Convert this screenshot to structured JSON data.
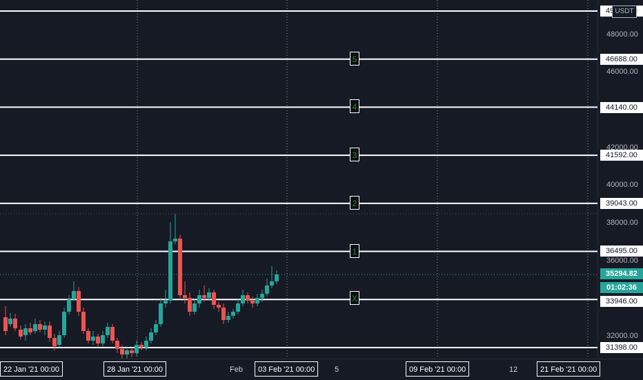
{
  "currency": "USDT",
  "colors": {
    "background": "#161a25",
    "up": "#26a69a",
    "down": "#ef5350",
    "level": "#ffffff",
    "wave_label": "#2e8b2e",
    "current_price": "#26a69a"
  },
  "price_ticks": [
    "48000.00",
    "46000.00",
    "42000.00",
    "40000.00",
    "38000.00",
    "36000.00",
    "32000.00"
  ],
  "levels": [
    {
      "label": "",
      "price": "49236.00"
    },
    {
      "label": "5",
      "price": "46688.00"
    },
    {
      "label": "4",
      "price": "44140.00"
    },
    {
      "label": "3",
      "price": "41592.00"
    },
    {
      "label": "2",
      "price": "39043.00"
    },
    {
      "label": "1",
      "price": "36495.00"
    },
    {
      "label": "X",
      "price": "33946.00"
    },
    {
      "label": "",
      "price": "31398.00"
    }
  ],
  "current_price": "35294.82",
  "countdown": "01:02:36",
  "time_labels": [
    "5",
    "Feb",
    "12"
  ],
  "time_boxes": [
    "22 Jan '21   00:00",
    "28 Jan '21   00:00",
    "03 Feb '21   00:00",
    "09 Feb '21   00:00",
    "21 Feb '21   00:00"
  ]
}
